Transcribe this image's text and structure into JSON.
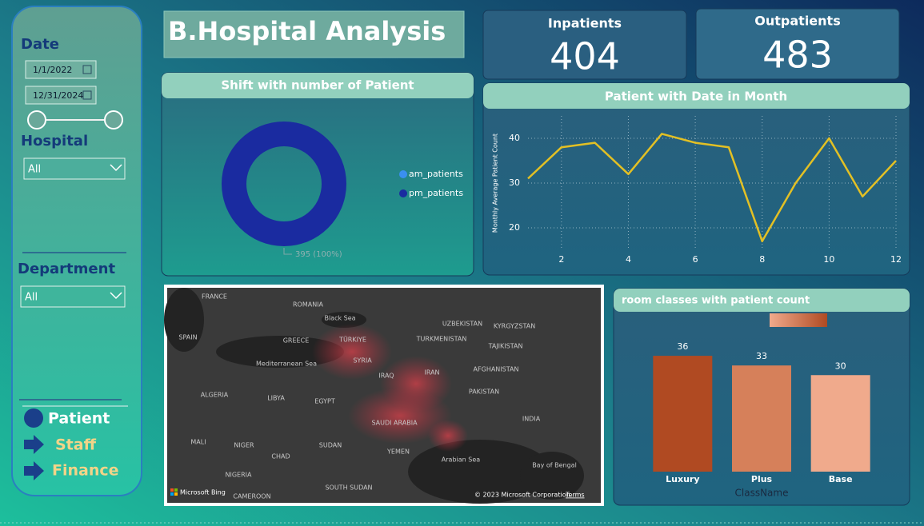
{
  "header": {
    "title": "B.Hospital Analysis"
  },
  "filters": {
    "date_label": "Date",
    "start_date": "1/1/2022",
    "end_date": "12/31/2024",
    "hospital_label": "Hospital",
    "hospital_value": "All",
    "department_label": "Department",
    "department_value": "All"
  },
  "nav": [
    "Patient",
    "Staff",
    "Finance"
  ],
  "kpis": [
    {
      "label": "Inpatients",
      "value": 404
    },
    {
      "label": "Outpatients",
      "value": 483
    }
  ],
  "map": {
    "labels": [
      "FRANCE",
      "ROMANIA",
      "Black Sea",
      "UZBEKISTAN",
      "KYRGYZSTAN",
      "SPAIN",
      "GREECE",
      "TÜRKIYE",
      "TURKMENISTAN",
      "TAJIKISTAN",
      "Mediterranean Sea",
      "SYRIA",
      "IRAQ",
      "IRAN",
      "AFGHANISTAN",
      "ALGERIA",
      "LIBYA",
      "EGYPT",
      "PAKISTAN",
      "SAUDI ARABIA",
      "INDIA",
      "MALI",
      "NIGER",
      "SUDAN",
      "CHAD",
      "YEMEN",
      "Arabian Sea",
      "Bay of Bengal",
      "NIGERIA",
      "SOUTH SUDAN",
      "CAMEROON"
    ],
    "attribution": "© 2023 Microsoft Corporation",
    "terms": "Terms",
    "provider": "Microsoft Bing"
  },
  "chart_data": [
    {
      "type": "pie",
      "title": "Shift with number of Patient",
      "categories": [
        "am_patients",
        "pm_patients"
      ],
      "values": [
        0,
        395
      ],
      "value_labels": [
        null,
        "395 (100%)"
      ],
      "colors": [
        "#3a8ff0",
        "#1a2ba0"
      ],
      "donut": true,
      "legend": "right"
    },
    {
      "type": "line",
      "title": "Patient with Date in Month",
      "ylabel": "Monthly Average Patient Count",
      "x": [
        1,
        2,
        3,
        4,
        5,
        6,
        7,
        8,
        9,
        10,
        11,
        12
      ],
      "values": [
        31,
        38,
        39,
        32,
        41,
        39,
        38,
        17,
        30,
        40,
        27,
        35
      ],
      "color": "#e3c024",
      "xlim": [
        1,
        12
      ],
      "xticks": [
        2,
        4,
        6,
        8,
        10,
        12
      ],
      "ylim": [
        15,
        45
      ],
      "yticks": [
        20,
        30,
        40
      ],
      "grid": true
    },
    {
      "type": "bar",
      "title": "room classes with patient count",
      "categories": [
        "Luxury",
        "Plus",
        "Base"
      ],
      "values": [
        36,
        33,
        30
      ],
      "colors": [
        "#b04a22",
        "#d6805a",
        "#f0aa8c"
      ],
      "xlabel": "ClassName",
      "ylim": [
        0,
        40
      ]
    }
  ]
}
